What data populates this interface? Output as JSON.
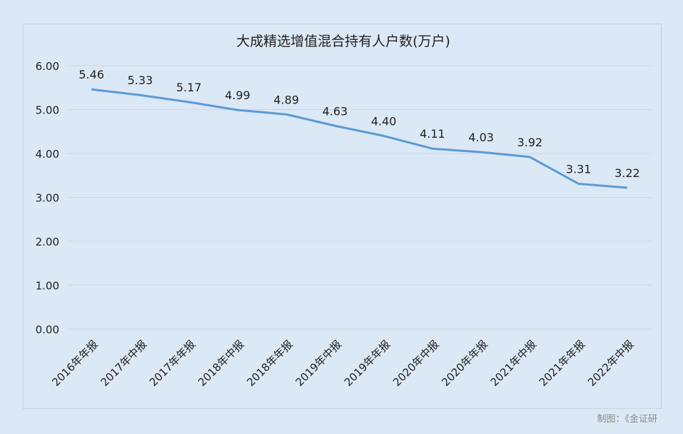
{
  "chart_data": {
    "type": "line",
    "title": "大成精选增值混合持有人户数(万户)",
    "categories": [
      "2016年年报",
      "2017年中报",
      "2017年年报",
      "2018年中报",
      "2018年年报",
      "2019年中报",
      "2019年年报",
      "2020年中报",
      "2020年年报",
      "2021年中报",
      "2021年年报",
      "2022年中报"
    ],
    "series": [
      {
        "values": [
          5.46,
          5.33,
          5.17,
          4.99,
          4.89,
          4.63,
          4.4,
          4.11,
          4.03,
          3.92,
          3.31,
          3.22
        ]
      }
    ],
    "value_labels": [
      "5.46",
      "5.33",
      "5.17",
      "4.99",
      "4.89",
      "4.63",
      "4.40",
      "4.11",
      "4.03",
      "3.92",
      "3.31",
      "3.22"
    ],
    "ylim": [
      0,
      6
    ],
    "yticks": [
      "0.00",
      "1.00",
      "2.00",
      "3.00",
      "4.00",
      "5.00",
      "6.00"
    ],
    "grid": true,
    "line_color": "#5b9bd5"
  },
  "footer": {
    "credit": "制图：《金证研"
  }
}
